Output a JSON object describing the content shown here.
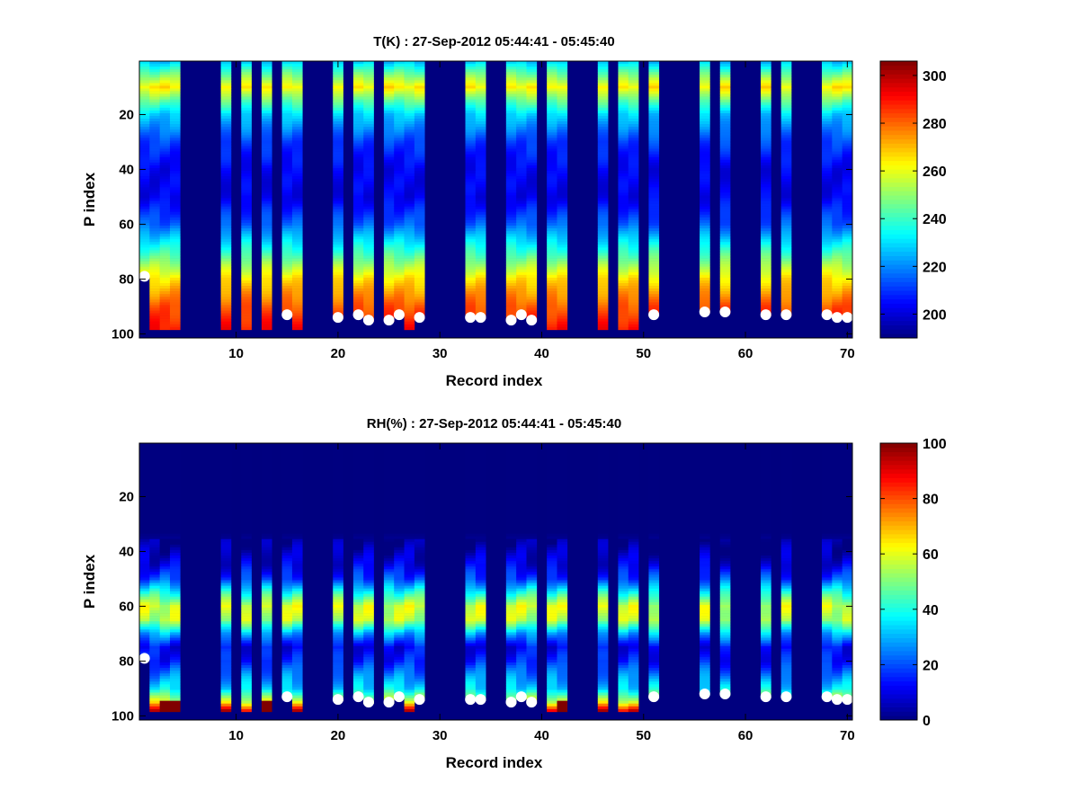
{
  "chart_data": [
    {
      "type": "heatmap",
      "title": "T(K) : 27-Sep-2012 05:44:41 - 05:45:40",
      "xlabel": "Record index",
      "ylabel": "P index",
      "xlim": [
        0.5,
        70.5
      ],
      "ylim": [
        0.5,
        101.5
      ],
      "y_reversed": true,
      "xticks": [
        "10",
        "20",
        "30",
        "40",
        "50",
        "60",
        "70"
      ],
      "yticks": [
        "20",
        "40",
        "60",
        "80",
        "100"
      ],
      "colorbar": {
        "range": [
          190,
          306
        ],
        "ticks": [
          "200",
          "220",
          "240",
          "260",
          "280",
          "300"
        ],
        "colormap": "jet"
      },
      "fill_color": "#00007f",
      "records": [
        1,
        2,
        3,
        4,
        9,
        11,
        13,
        15,
        16,
        20,
        22,
        23,
        25,
        26,
        27,
        28,
        33,
        34,
        37,
        38,
        39,
        41,
        42,
        46,
        48,
        49,
        51,
        56,
        58,
        62,
        64,
        68,
        69,
        70
      ],
      "profile_rows": [
        1,
        5,
        10,
        15,
        20,
        30,
        40,
        50,
        60,
        70,
        80,
        90,
        98
      ],
      "profile_values": [
        228,
        245,
        265,
        245,
        228,
        212,
        203,
        203,
        215,
        240,
        265,
        282,
        290
      ],
      "max_row": 98
    },
    {
      "type": "heatmap",
      "title": "RH(%) : 27-Sep-2012 05:44:41 - 05:45:40",
      "xlabel": "Record index",
      "ylabel": "P index",
      "xlim": [
        0.5,
        70.5
      ],
      "ylim": [
        0.5,
        101.5
      ],
      "y_reversed": true,
      "xticks": [
        "10",
        "20",
        "30",
        "40",
        "50",
        "60",
        "70"
      ],
      "yticks": [
        "20",
        "40",
        "60",
        "80",
        "100"
      ],
      "colorbar": {
        "range": [
          0,
          100
        ],
        "ticks": [
          "0",
          "20",
          "40",
          "60",
          "80",
          "100"
        ],
        "colormap": "jet"
      },
      "fill_color": "#00007f",
      "records": [
        1,
        2,
        3,
        4,
        9,
        11,
        13,
        15,
        16,
        20,
        22,
        23,
        25,
        26,
        27,
        28,
        33,
        34,
        37,
        38,
        39,
        41,
        42,
        46,
        48,
        49,
        51,
        56,
        58,
        62,
        64,
        68,
        69,
        70
      ],
      "profile_rows": [
        1,
        33,
        40,
        45,
        50,
        55,
        60,
        65,
        70,
        75,
        80,
        85,
        90,
        95,
        98
      ],
      "profile_values": [
        0,
        0,
        5,
        10,
        20,
        40,
        58,
        55,
        30,
        12,
        15,
        25,
        35,
        60,
        90
      ],
      "max_row": 98
    }
  ],
  "surface_points": {
    "records": [
      1,
      15,
      20,
      22,
      23,
      25,
      26,
      28,
      33,
      34,
      37,
      38,
      39,
      51,
      56,
      58,
      62,
      64,
      68,
      69,
      70
    ],
    "p_index": [
      79,
      93,
      94,
      93,
      95,
      95,
      93,
      94,
      94,
      94,
      95,
      93,
      95,
      93,
      92,
      92,
      93,
      93,
      93,
      94,
      94
    ],
    "color": "#ffffff"
  }
}
